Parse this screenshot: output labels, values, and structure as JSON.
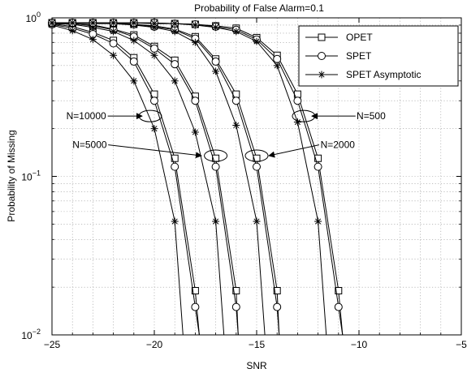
{
  "chart_data": {
    "type": "line",
    "title": "Probability of False Alarm=0.1",
    "xlabel": "SNR",
    "ylabel": "Probability of Missing",
    "xlim": [
      -25,
      -5
    ],
    "ylim": [
      0.01,
      1
    ],
    "yscale": "log",
    "grid": true,
    "xticks": [
      -25,
      -20,
      -15,
      -10,
      -5
    ],
    "xtick_labels": [
      "−25",
      "−20",
      "−15",
      "−10",
      "−5"
    ],
    "yticks": [
      {
        "value": 1,
        "base": "10",
        "exp": "0"
      },
      {
        "value": 0.1,
        "base": "10",
        "exp": "−1"
      },
      {
        "value": 0.01,
        "base": "10",
        "exp": "−2"
      }
    ],
    "legend": {
      "position": "top-right",
      "entries": [
        {
          "label": "OPET",
          "marker": "square"
        },
        {
          "label": "SPET",
          "marker": "circle"
        },
        {
          "label": "SPET Asymptotic",
          "marker": "star"
        }
      ]
    },
    "series": [
      {
        "group": "N=10000",
        "marker": "square",
        "x": [
          -25,
          -24,
          -23,
          -22,
          -21,
          -20,
          -19,
          -18,
          -17.8
        ],
        "y": [
          0.92,
          0.88,
          0.81,
          0.72,
          0.56,
          0.33,
          0.13,
          0.019,
          0.01
        ]
      },
      {
        "group": "N=10000",
        "marker": "circle",
        "x": [
          -25,
          -24,
          -23,
          -22,
          -21,
          -20,
          -19,
          -18,
          -17.8
        ],
        "y": [
          0.91,
          0.86,
          0.79,
          0.69,
          0.53,
          0.3,
          0.115,
          0.015,
          0.01
        ]
      },
      {
        "group": "N=10000",
        "marker": "star",
        "x": [
          -25,
          -24,
          -23,
          -22,
          -21,
          -20,
          -19,
          -18.6
        ],
        "y": [
          0.9,
          0.83,
          0.73,
          0.58,
          0.4,
          0.2,
          0.052,
          0.01
        ]
      },
      {
        "group": "N=5000",
        "marker": "square",
        "x": [
          -25,
          -24,
          -23,
          -22,
          -21,
          -20,
          -19,
          -18,
          -17,
          -16,
          -15.9
        ],
        "y": [
          0.93,
          0.92,
          0.9,
          0.85,
          0.78,
          0.66,
          0.54,
          0.32,
          0.13,
          0.019,
          0.01
        ]
      },
      {
        "group": "N=5000",
        "marker": "circle",
        "x": [
          -25,
          -24,
          -23,
          -22,
          -21,
          -20,
          -19,
          -18,
          -17,
          -16,
          -15.9
        ],
        "y": [
          0.93,
          0.92,
          0.89,
          0.84,
          0.76,
          0.64,
          0.51,
          0.3,
          0.115,
          0.015,
          0.01
        ]
      },
      {
        "group": "N=5000",
        "marker": "star",
        "x": [
          -25,
          -24,
          -23,
          -22,
          -21,
          -20,
          -19,
          -18,
          -17,
          -16.6
        ],
        "y": [
          0.92,
          0.91,
          0.87,
          0.82,
          0.72,
          0.58,
          0.4,
          0.19,
          0.052,
          0.01
        ]
      },
      {
        "group": "N=2000",
        "marker": "square",
        "x": [
          -25,
          -24,
          -23,
          -22,
          -21,
          -20,
          -19,
          -18,
          -17,
          -16,
          -15,
          -14,
          -13.9
        ],
        "y": [
          0.93,
          0.93,
          0.93,
          0.92,
          0.91,
          0.89,
          0.85,
          0.76,
          0.55,
          0.33,
          0.13,
          0.019,
          0.01
        ]
      },
      {
        "group": "N=2000",
        "marker": "circle",
        "x": [
          -25,
          -24,
          -23,
          -22,
          -21,
          -20,
          -19,
          -18,
          -17,
          -16,
          -15,
          -14,
          -13.9
        ],
        "y": [
          0.93,
          0.93,
          0.93,
          0.92,
          0.91,
          0.88,
          0.84,
          0.74,
          0.53,
          0.3,
          0.115,
          0.015,
          0.01
        ]
      },
      {
        "group": "N=2000",
        "marker": "star",
        "x": [
          -25,
          -24,
          -23,
          -22,
          -21,
          -20,
          -19,
          -18,
          -17,
          -16,
          -15,
          -14.6
        ],
        "y": [
          0.93,
          0.93,
          0.92,
          0.92,
          0.9,
          0.87,
          0.82,
          0.7,
          0.46,
          0.21,
          0.052,
          0.01
        ]
      },
      {
        "group": "N=500",
        "marker": "square",
        "x": [
          -25,
          -24,
          -23,
          -22,
          -21,
          -20,
          -19,
          -18,
          -17,
          -16,
          -15,
          -14,
          -13,
          -12,
          -11,
          -10.8
        ],
        "y": [
          0.93,
          0.93,
          0.93,
          0.93,
          0.93,
          0.93,
          0.92,
          0.91,
          0.89,
          0.86,
          0.75,
          0.58,
          0.33,
          0.13,
          0.019,
          0.01
        ]
      },
      {
        "group": "N=500",
        "marker": "circle",
        "x": [
          -25,
          -24,
          -23,
          -22,
          -21,
          -20,
          -19,
          -18,
          -17,
          -16,
          -15,
          -14,
          -13,
          -12,
          -11,
          -10.8
        ],
        "y": [
          0.93,
          0.93,
          0.93,
          0.93,
          0.93,
          0.93,
          0.92,
          0.91,
          0.88,
          0.84,
          0.73,
          0.55,
          0.3,
          0.115,
          0.015,
          0.01
        ]
      },
      {
        "group": "N=500",
        "marker": "star",
        "x": [
          -25,
          -24,
          -23,
          -22,
          -21,
          -20,
          -19,
          -18,
          -17,
          -16,
          -15,
          -14,
          -13,
          -12,
          -11.6
        ],
        "y": [
          0.93,
          0.93,
          0.93,
          0.93,
          0.93,
          0.92,
          0.92,
          0.9,
          0.87,
          0.82,
          0.71,
          0.5,
          0.22,
          0.052,
          0.01
        ]
      }
    ],
    "annotations": [
      {
        "text": "N=10000",
        "anchor": "left",
        "label_x": -24.3,
        "label_y": 0.24,
        "arrow_to_x": -20.6,
        "ellipse_x": -20.2,
        "ellipse_y": 0.24
      },
      {
        "text": "N=5000",
        "anchor": "left",
        "label_x": -24.0,
        "label_y": 0.158,
        "arrow_to_x": -17.7,
        "ellipse_x": -17.0,
        "ellipse_y": 0.135
      },
      {
        "text": "N=2000",
        "anchor": "right",
        "label_x": -10.2,
        "label_y": 0.158,
        "arrow_to_x": -14.4,
        "ellipse_x": -15.0,
        "ellipse_y": 0.135
      },
      {
        "text": "N=500",
        "anchor": "right",
        "label_x": -8.7,
        "label_y": 0.24,
        "arrow_to_x": -12.3,
        "ellipse_x": -12.7,
        "ellipse_y": 0.24
      }
    ]
  }
}
